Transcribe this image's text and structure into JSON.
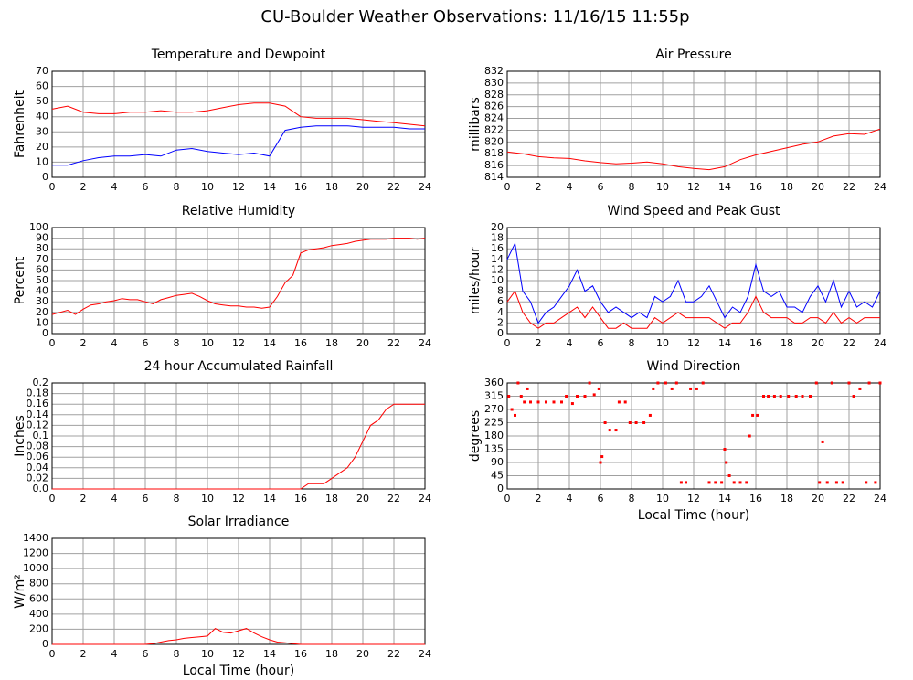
{
  "title": "CU-Boulder Weather Observations: 11/16/15 11:55p",
  "chart_data": [
    {
      "type": "line",
      "title": "Temperature and Dewpoint",
      "y_label": "Fahrenheit",
      "x": [
        0,
        1,
        2,
        3,
        4,
        5,
        6,
        7,
        8,
        9,
        10,
        11,
        12,
        13,
        14,
        15,
        16,
        17,
        18,
        19,
        20,
        21,
        22,
        23,
        24
      ],
      "series": [
        {
          "color": "#ff0000",
          "values": [
            45,
            47,
            43,
            42,
            42,
            43,
            43,
            44,
            43,
            43,
            44,
            46,
            48,
            49,
            49,
            47,
            40,
            39,
            39,
            39,
            38,
            37,
            36,
            35,
            34
          ]
        },
        {
          "color": "#0000ff",
          "values": [
            8,
            8,
            11,
            13,
            14,
            14,
            15,
            14,
            18,
            19,
            17,
            16,
            15,
            16,
            14,
            31,
            33,
            34,
            34,
            34,
            33,
            33,
            33,
            32,
            32
          ]
        }
      ],
      "xlim": [
        0,
        24
      ],
      "xticks": [
        0,
        2,
        4,
        6,
        8,
        10,
        12,
        14,
        16,
        18,
        20,
        22,
        24
      ],
      "ylim": [
        0,
        70
      ],
      "yticks": [
        0,
        10,
        20,
        30,
        40,
        50,
        60,
        70
      ],
      "grid": true
    },
    {
      "type": "line",
      "title": "Air Pressure",
      "y_label": "millibars",
      "x": [
        0,
        1,
        2,
        3,
        4,
        5,
        6,
        7,
        8,
        9,
        10,
        11,
        12,
        13,
        14,
        15,
        16,
        17,
        18,
        19,
        20,
        21,
        22,
        23,
        24
      ],
      "series": [
        {
          "color": "#ff0000",
          "values": [
            818.3,
            818,
            817.5,
            817.3,
            817.2,
            816.8,
            816.5,
            816.3,
            816.4,
            816.6,
            816.3,
            815.8,
            815.5,
            815.3,
            815.8,
            817,
            817.8,
            818.4,
            819,
            819.6,
            820,
            821,
            821.4,
            821.3,
            822.2
          ]
        }
      ],
      "xlim": [
        0,
        24
      ],
      "xticks": [
        0,
        2,
        4,
        6,
        8,
        10,
        12,
        14,
        16,
        18,
        20,
        22,
        24
      ],
      "ylim": [
        814,
        832
      ],
      "yticks": [
        814,
        816,
        818,
        820,
        822,
        824,
        826,
        828,
        830,
        832
      ],
      "grid": true
    },
    {
      "type": "line",
      "title": "Relative Humidity",
      "y_label": "Percent",
      "x": [
        0,
        0.5,
        1,
        1.5,
        2,
        2.5,
        3,
        3.5,
        4,
        4.5,
        5,
        5.5,
        6,
        6.5,
        7,
        7.5,
        8,
        8.5,
        9,
        9.5,
        10,
        10.5,
        11,
        11.5,
        12,
        12.5,
        13,
        13.5,
        14,
        14.5,
        15,
        15.5,
        16,
        16.5,
        17,
        17.5,
        18,
        18.5,
        19,
        19.5,
        20,
        20.5,
        21,
        21.5,
        22,
        22.5,
        23,
        23.5,
        24
      ],
      "series": [
        {
          "color": "#ff0000",
          "values": [
            18,
            20,
            22,
            18,
            23,
            27,
            28,
            30,
            31,
            33,
            32,
            32,
            30,
            28,
            32,
            34,
            36,
            37,
            38,
            35,
            31,
            28,
            27,
            26,
            26,
            25,
            25,
            24,
            25,
            35,
            48,
            55,
            76,
            79,
            80,
            81,
            83,
            84,
            85,
            87,
            88,
            89,
            89,
            89,
            90,
            90,
            90,
            89,
            90
          ]
        }
      ],
      "xlim": [
        0,
        24
      ],
      "xticks": [
        0,
        2,
        4,
        6,
        8,
        10,
        12,
        14,
        16,
        18,
        20,
        22,
        24
      ],
      "ylim": [
        0,
        100
      ],
      "yticks": [
        0,
        10,
        20,
        30,
        40,
        50,
        60,
        70,
        80,
        90,
        100
      ],
      "grid": true
    },
    {
      "type": "line",
      "title": "Wind Speed and Peak Gust",
      "y_label": "miles/hour",
      "x": [
        0,
        0.5,
        1,
        1.5,
        2,
        2.5,
        3,
        3.5,
        4,
        4.5,
        5,
        5.5,
        6,
        6.5,
        7,
        7.5,
        8,
        8.5,
        9,
        9.5,
        10,
        10.5,
        11,
        11.5,
        12,
        12.5,
        13,
        13.5,
        14,
        14.5,
        15,
        15.5,
        16,
        16.5,
        17,
        17.5,
        18,
        18.5,
        19,
        19.5,
        20,
        20.5,
        21,
        21.5,
        22,
        22.5,
        23,
        23.5,
        24
      ],
      "series": [
        {
          "color": "#0000ff",
          "values": [
            14,
            17,
            8,
            6,
            2,
            4,
            5,
            7,
            9,
            12,
            8,
            9,
            6,
            4,
            5,
            4,
            3,
            4,
            3,
            7,
            6,
            7,
            10,
            6,
            6,
            7,
            9,
            6,
            3,
            5,
            4,
            7,
            13,
            8,
            7,
            8,
            5,
            5,
            4,
            7,
            9,
            6,
            10,
            5,
            8,
            5,
            6,
            5,
            8
          ]
        },
        {
          "color": "#ff0000",
          "values": [
            6,
            8,
            4,
            2,
            1,
            2,
            2,
            3,
            4,
            5,
            3,
            5,
            3,
            1,
            1,
            2,
            1,
            1,
            1,
            3,
            2,
            3,
            4,
            3,
            3,
            3,
            3,
            2,
            1,
            2,
            2,
            4,
            7,
            4,
            3,
            3,
            3,
            2,
            2,
            3,
            3,
            2,
            4,
            2,
            3,
            2,
            3,
            3,
            3
          ]
        }
      ],
      "xlim": [
        0,
        24
      ],
      "xticks": [
        0,
        2,
        4,
        6,
        8,
        10,
        12,
        14,
        16,
        18,
        20,
        22,
        24
      ],
      "ylim": [
        0,
        20
      ],
      "yticks": [
        0,
        2,
        4,
        6,
        8,
        10,
        12,
        14,
        16,
        18,
        20
      ],
      "grid": true
    },
    {
      "type": "line",
      "title": "24 hour Accumulated Rainfall",
      "y_label": "Inches",
      "x": [
        0,
        0.5,
        1,
        1.5,
        2,
        2.5,
        3,
        3.5,
        4,
        4.5,
        5,
        5.5,
        6,
        6.5,
        7,
        7.5,
        8,
        8.5,
        9,
        9.5,
        10,
        10.5,
        11,
        11.5,
        12,
        12.5,
        13,
        13.5,
        14,
        14.5,
        15,
        15.5,
        16,
        16.5,
        17,
        17.5,
        18,
        18.5,
        19,
        19.5,
        20,
        20.5,
        21,
        21.5,
        22,
        22.5,
        23,
        23.5,
        24
      ],
      "series": [
        {
          "color": "#ff0000",
          "values": [
            0,
            0,
            0,
            0,
            0,
            0,
            0,
            0,
            0,
            0,
            0,
            0,
            0,
            0,
            0,
            0,
            0,
            0,
            0,
            0,
            0,
            0,
            0,
            0,
            0,
            0,
            0,
            0,
            0,
            0,
            0,
            0,
            0,
            0.01,
            0.01,
            0.01,
            0.02,
            0.03,
            0.04,
            0.06,
            0.09,
            0.12,
            0.13,
            0.15,
            0.16,
            0.16,
            0.16,
            0.16,
            0.16
          ]
        }
      ],
      "xlim": [
        0,
        24
      ],
      "xticks": [
        0,
        2,
        4,
        6,
        8,
        10,
        12,
        14,
        16,
        18,
        20,
        22,
        24
      ],
      "ylim": [
        0,
        0.2
      ],
      "yticks": [
        {
          "value": 0,
          "label": "0.0"
        },
        0.02,
        0.04,
        0.06,
        0.08,
        0.1,
        0.12,
        0.14,
        0.16,
        0.18,
        0.2
      ],
      "grid": true
    },
    {
      "type": "scatter",
      "title": "Wind Direction",
      "y_label": "degrees",
      "x_label": "Local Time (hour)",
      "color": "#ff0000",
      "x": [
        0.1,
        0.3,
        0.5,
        0.7,
        0.9,
        1.1,
        1.3,
        1.5,
        2,
        2.5,
        3,
        3.5,
        3.8,
        4.2,
        4.5,
        5,
        5.3,
        5.6,
        5.9,
        6,
        6.1,
        6.3,
        6.6,
        7,
        7.2,
        7.6,
        7.9,
        8.3,
        8.8,
        9.2,
        9.4,
        9.7,
        10.2,
        10.6,
        10.9,
        11.2,
        11.5,
        11.8,
        12.2,
        12.6,
        13,
        13.4,
        13.8,
        14,
        14.1,
        14.3,
        14.6,
        15,
        15.4,
        15.6,
        15.8,
        16.1,
        16.5,
        16.8,
        17.2,
        17.6,
        18.1,
        18.6,
        19,
        19.5,
        19.9,
        20.1,
        20.3,
        20.6,
        20.9,
        21.2,
        21.6,
        22,
        22.3,
        22.7,
        23.1,
        23.3,
        23.7,
        24
      ],
      "values": [
        315,
        270,
        250,
        360,
        315,
        295,
        340,
        295,
        295,
        295,
        295,
        295,
        315,
        290,
        315,
        315,
        360,
        320,
        340,
        90,
        110,
        225,
        200,
        200,
        295,
        295,
        225,
        225,
        225,
        250,
        340,
        360,
        360,
        340,
        360,
        22,
        22,
        340,
        340,
        360,
        22,
        22,
        22,
        135,
        90,
        45,
        22,
        22,
        22,
        180,
        250,
        250,
        315,
        315,
        315,
        315,
        315,
        315,
        315,
        315,
        360,
        22,
        160,
        22,
        360,
        22,
        22,
        360,
        315,
        340,
        22,
        360,
        22,
        360
      ],
      "xlim": [
        0,
        24
      ],
      "xticks": [
        0,
        2,
        4,
        6,
        8,
        10,
        12,
        14,
        16,
        18,
        20,
        22,
        24
      ],
      "ylim": [
        0,
        360
      ],
      "yticks": [
        0,
        45,
        90,
        135,
        180,
        225,
        270,
        315,
        360
      ],
      "grid": true
    },
    {
      "type": "line",
      "title": "Solar Irradiance",
      "y_label": "W/m²",
      "x_label": "Local Time (hour)",
      "x": [
        0,
        0.5,
        1,
        1.5,
        2,
        2.5,
        3,
        3.5,
        4,
        4.5,
        5,
        5.5,
        6,
        6.5,
        7,
        7.5,
        8,
        8.5,
        9,
        9.5,
        10,
        10.5,
        11,
        11.5,
        12,
        12.5,
        13,
        13.5,
        14,
        14.5,
        15,
        15.5,
        16,
        16.5,
        17,
        17.5,
        18,
        18.5,
        19,
        19.5,
        20,
        20.5,
        21,
        21.5,
        22,
        22.5,
        23,
        23.5,
        24
      ],
      "series": [
        {
          "color": "#ff0000",
          "values": [
            0,
            0,
            0,
            0,
            0,
            0,
            0,
            0,
            0,
            0,
            0,
            0,
            0,
            10,
            30,
            50,
            60,
            80,
            90,
            100,
            110,
            210,
            160,
            150,
            180,
            210,
            150,
            100,
            60,
            30,
            20,
            10,
            0,
            0,
            0,
            0,
            0,
            0,
            0,
            0,
            0,
            0,
            0,
            0,
            0,
            0,
            0,
            0,
            0
          ]
        }
      ],
      "xlim": [
        0,
        24
      ],
      "xticks": [
        0,
        2,
        4,
        6,
        8,
        10,
        12,
        14,
        16,
        18,
        20,
        22,
        24
      ],
      "ylim": [
        0,
        1400
      ],
      "yticks": [
        0,
        200,
        400,
        600,
        800,
        1000,
        1200,
        1400
      ],
      "grid": true
    }
  ]
}
